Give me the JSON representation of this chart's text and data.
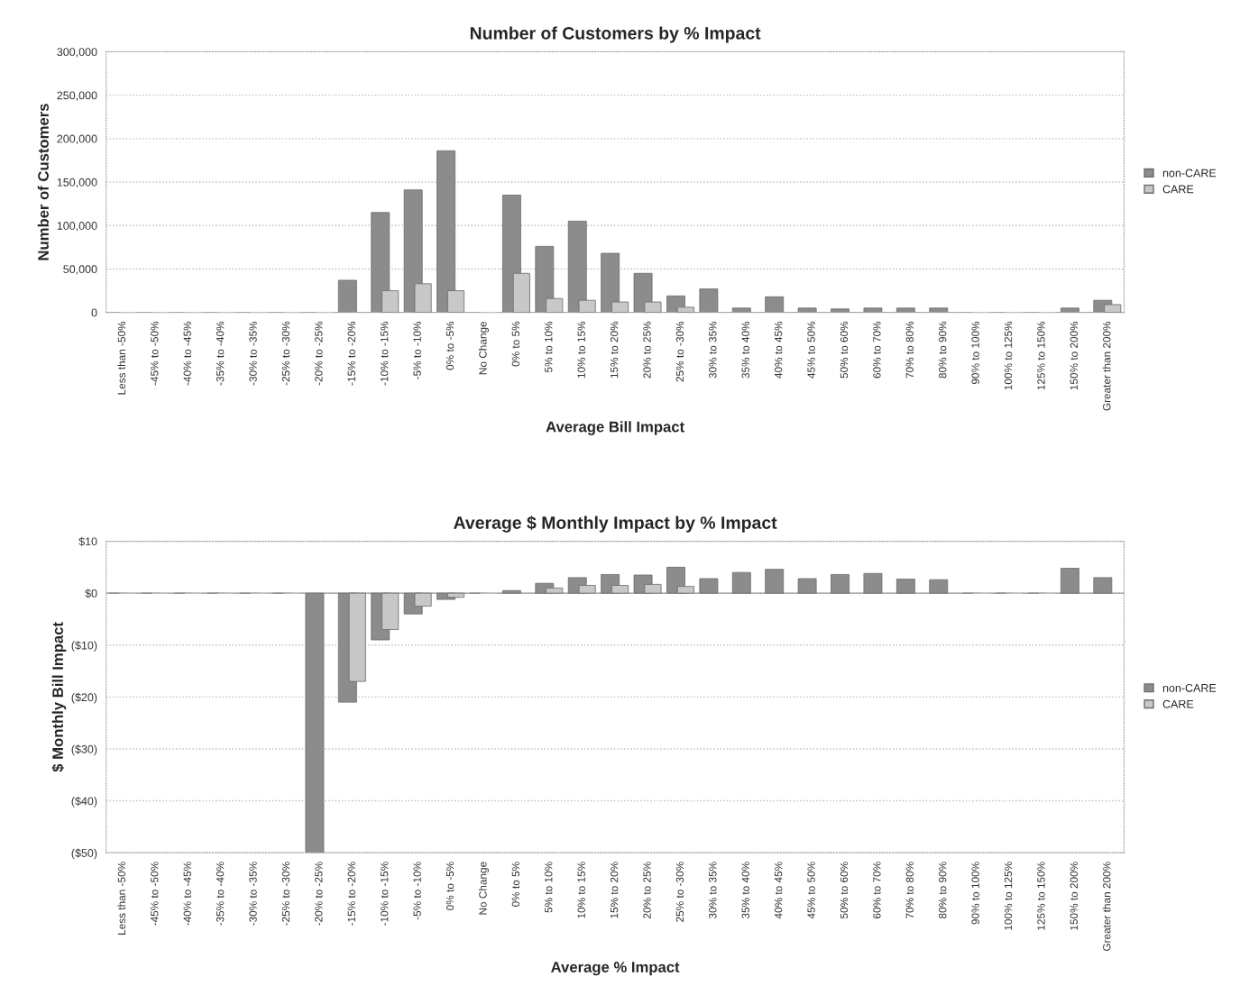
{
  "chart_data": [
    {
      "type": "bar",
      "title": "Number of Customers by % Impact",
      "xlabel": "Average Bill Impact",
      "ylabel": "Number of Customers",
      "categories": [
        "Less than -50%",
        "-45% to -50%",
        "-40% to -45%",
        "-35% to -40%",
        "-30% to -35%",
        "-25% to -30%",
        "-20% to -25%",
        "-15% to -20%",
        "-10% to -15%",
        "-5% to -10%",
        "0% to -5%",
        "No Change",
        "0% to 5%",
        "5% to 10%",
        "10% to 15%",
        "15% to 20%",
        "20% to 25%",
        "25% to -30%",
        "30% to 35%",
        "35% to 40%",
        "40% to 45%",
        "45% to 50%",
        "50% to 60%",
        "60% to 70%",
        "70% to 80%",
        "80% to 90%",
        "90% to 100%",
        "100% to 125%",
        "125% to 150%",
        "150% to 200%",
        "Greater than 200%"
      ],
      "series": [
        {
          "name": "non-CARE",
          "color": "#8c8c8c",
          "values": [
            0,
            0,
            0,
            0,
            0,
            0,
            0,
            37000,
            115000,
            141000,
            186000,
            0,
            135000,
            76000,
            105000,
            68000,
            45000,
            19000,
            27000,
            5000,
            18000,
            5000,
            4000,
            5000,
            5000,
            5000,
            0,
            0,
            0,
            5000,
            14000
          ]
        },
        {
          "name": "CARE",
          "color": "#c8c8c8",
          "values": [
            0,
            0,
            0,
            0,
            0,
            0,
            0,
            null,
            25000,
            33000,
            25000,
            0,
            45000,
            16000,
            14000,
            12000,
            12000,
            6000,
            null,
            null,
            null,
            null,
            null,
            null,
            null,
            null,
            0,
            0,
            0,
            null,
            9000
          ]
        }
      ],
      "ylim": [
        0,
        300000
      ],
      "yticks": [
        0,
        {
          "value": 50000,
          "label": "50,000"
        },
        {
          "value": 100000,
          "label": "100,000"
        },
        {
          "value": 150000,
          "label": "150,000"
        },
        {
          "value": 200000,
          "label": "200,000"
        },
        {
          "value": 250000,
          "label": "250,000"
        },
        {
          "value": 300000,
          "label": "300,000"
        }
      ],
      "grid": "y",
      "legend": "right"
    },
    {
      "type": "bar",
      "title": "Average $ Monthly Impact by % Impact",
      "xlabel": "Average % Impact",
      "ylabel": "$ Monthly Bill Impact",
      "categories": [
        "Less than -50%",
        "-45% to -50%",
        "-40% to -45%",
        "-35% to -40%",
        "-30% to -35%",
        "-25% to -30%",
        "-20% to -25%",
        "-15% to -20%",
        "-10% to -15%",
        "-5% to -10%",
        "0% to -5%",
        "No Change",
        "0% to 5%",
        "5% to 10%",
        "10% to 15%",
        "15% to 20%",
        "20% to 25%",
        "25% to -30%",
        "30% to 35%",
        "35% to 40%",
        "40% to 45%",
        "45% to 50%",
        "50% to 60%",
        "60% to 70%",
        "70% to 80%",
        "80% to 90%",
        "90% to 100%",
        "100% to 125%",
        "125% to 150%",
        "150% to 200%",
        "Greater than 200%"
      ],
      "series": [
        {
          "name": "non-CARE",
          "color": "#8c8c8c",
          "values": [
            0,
            0,
            0,
            0,
            0,
            0,
            -50,
            -21,
            -9,
            -4,
            -1.2,
            0,
            0.5,
            1.9,
            3.0,
            3.6,
            3.5,
            5.0,
            2.8,
            4.0,
            4.6,
            2.8,
            3.6,
            3.8,
            2.7,
            2.6,
            0,
            0,
            0,
            4.8,
            3.0
          ]
        },
        {
          "name": "CARE",
          "color": "#c8c8c8",
          "values": [
            0,
            0,
            0,
            0,
            0,
            0,
            null,
            -17,
            -7,
            -2.5,
            -0.8,
            0,
            null,
            1.0,
            1.5,
            1.5,
            1.7,
            1.3,
            null,
            null,
            null,
            null,
            null,
            null,
            null,
            null,
            0,
            0,
            0,
            null,
            null
          ]
        }
      ],
      "ylim": [
        -50,
        10
      ],
      "yticks": [
        {
          "value": -50,
          "label": "($50)"
        },
        {
          "value": -40,
          "label": "($40)"
        },
        {
          "value": -30,
          "label": "($30)"
        },
        {
          "value": -20,
          "label": "($20)"
        },
        {
          "value": -10,
          "label": "($10)"
        },
        {
          "value": 0,
          "label": "$0"
        },
        {
          "value": 10,
          "label": "$10"
        }
      ],
      "grid": "y",
      "legend": "right"
    }
  ]
}
